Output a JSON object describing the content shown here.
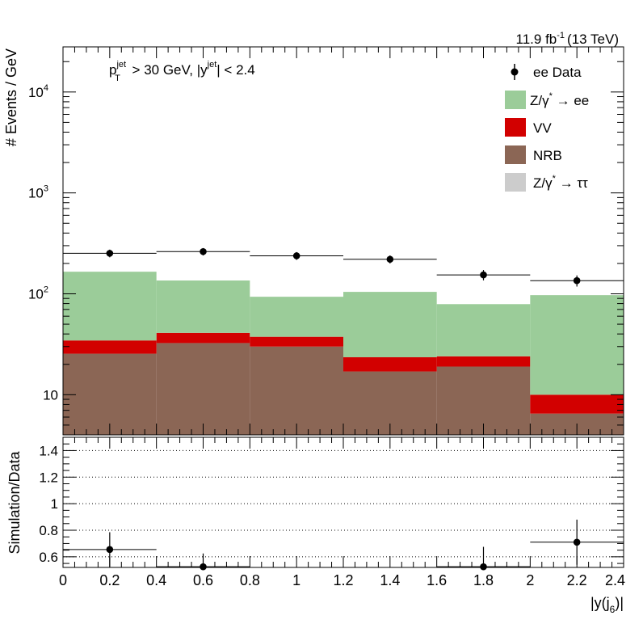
{
  "chart_data": [
    {
      "type": "bar",
      "panel": "main",
      "lumi_label": "11.9 fb",
      "lumi_sup": "-1",
      "lumi_energy": "(13 TeV)",
      "cut_label": {
        "p": "p",
        "p_sub": "T",
        "p_sup": "jet",
        "p_rest": " > 30 GeV,  |y",
        "y_sup": "jet",
        "y_rest": "| < 2.4"
      },
      "ylabel": "# Events / GeV",
      "ylog": true,
      "ylim": [
        4,
        28000
      ],
      "xlim": [
        0,
        2.4
      ],
      "bins": [
        0,
        0.4,
        0.8,
        1.2,
        1.6,
        2.0,
        2.4
      ],
      "yticks": [
        {
          "value": 10,
          "label": "10",
          "sup": ""
        },
        {
          "value": 100,
          "label": "10",
          "sup": "2"
        },
        {
          "value": 1000,
          "label": "10",
          "sup": "3"
        },
        {
          "value": 10000,
          "label": "10",
          "sup": "4"
        }
      ],
      "stack": [
        {
          "name": "NRB",
          "color": "#8b6655",
          "values": [
            25.5,
            32.5,
            30,
            17,
            19,
            6.5
          ]
        },
        {
          "name": "VV",
          "color": "#d20000",
          "values": [
            9,
            8.5,
            7.5,
            6.5,
            5,
            3.5
          ]
        },
        {
          "name": "Z/γ* → ee",
          "color": "#9bcc99",
          "values": [
            131,
            94.5,
            56,
            81,
            55,
            87
          ]
        },
        {
          "name": "Z/γ* → ττ",
          "color": "#cccccc",
          "values": [
            0,
            0,
            0,
            0,
            0,
            0
          ]
        }
      ],
      "data": {
        "name": "ee Data",
        "x": [
          0.2,
          0.6,
          1.0,
          1.4,
          1.8,
          2.2
        ],
        "y": [
          252,
          262,
          238,
          220,
          154,
          135
        ],
        "yerr": [
          22,
          22,
          21,
          20,
          18,
          17
        ]
      },
      "legend": {
        "placement": "top-right",
        "entries": [
          {
            "key": "data",
            "label": "ee Data",
            "sup": ""
          },
          {
            "key": "zee",
            "label": "Z/γ",
            "sup": "*",
            "label2": " → ee"
          },
          {
            "key": "vv",
            "label": "VV",
            "sup": ""
          },
          {
            "key": "nrb",
            "label": "NRB",
            "sup": ""
          },
          {
            "key": "ztt",
            "label": "Z/γ",
            "sup": "*",
            "label2": " → ττ"
          }
        ]
      }
    },
    {
      "type": "scatter",
      "panel": "ratio",
      "ylabel": "Simulation/Data",
      "ylim": [
        0.52,
        1.5
      ],
      "yticks": [
        "0.6",
        "0.8",
        "1",
        "1.2",
        "1.4"
      ],
      "ytick_values": [
        0.6,
        0.8,
        1.0,
        1.2,
        1.4
      ],
      "grid_values": [
        0.6,
        0.8,
        1.0,
        1.2,
        1.4
      ],
      "xlim": [
        0,
        2.4
      ],
      "xticks": [
        "0",
        "0.2",
        "0.4",
        "0.6",
        "0.8",
        "1",
        "1.2",
        "1.4",
        "1.6",
        "1.8",
        "2",
        "2.2",
        "2.4"
      ],
      "xtick_values": [
        0,
        0.2,
        0.4,
        0.6,
        0.8,
        1.0,
        1.2,
        1.4,
        1.6,
        1.8,
        2.0,
        2.2,
        2.4
      ],
      "xlabel": {
        "pre": "|y(j",
        "sub": "6",
        "post": ")|"
      },
      "points": {
        "x": [
          0.2,
          0.6,
          1.8,
          2.2
        ],
        "xerr": [
          0.2,
          0.2,
          0.2,
          0.2
        ],
        "y": [
          0.655,
          0.525,
          0.525,
          0.71
        ],
        "yerr": [
          0.13,
          0.1,
          0.15,
          0.17
        ]
      }
    }
  ]
}
